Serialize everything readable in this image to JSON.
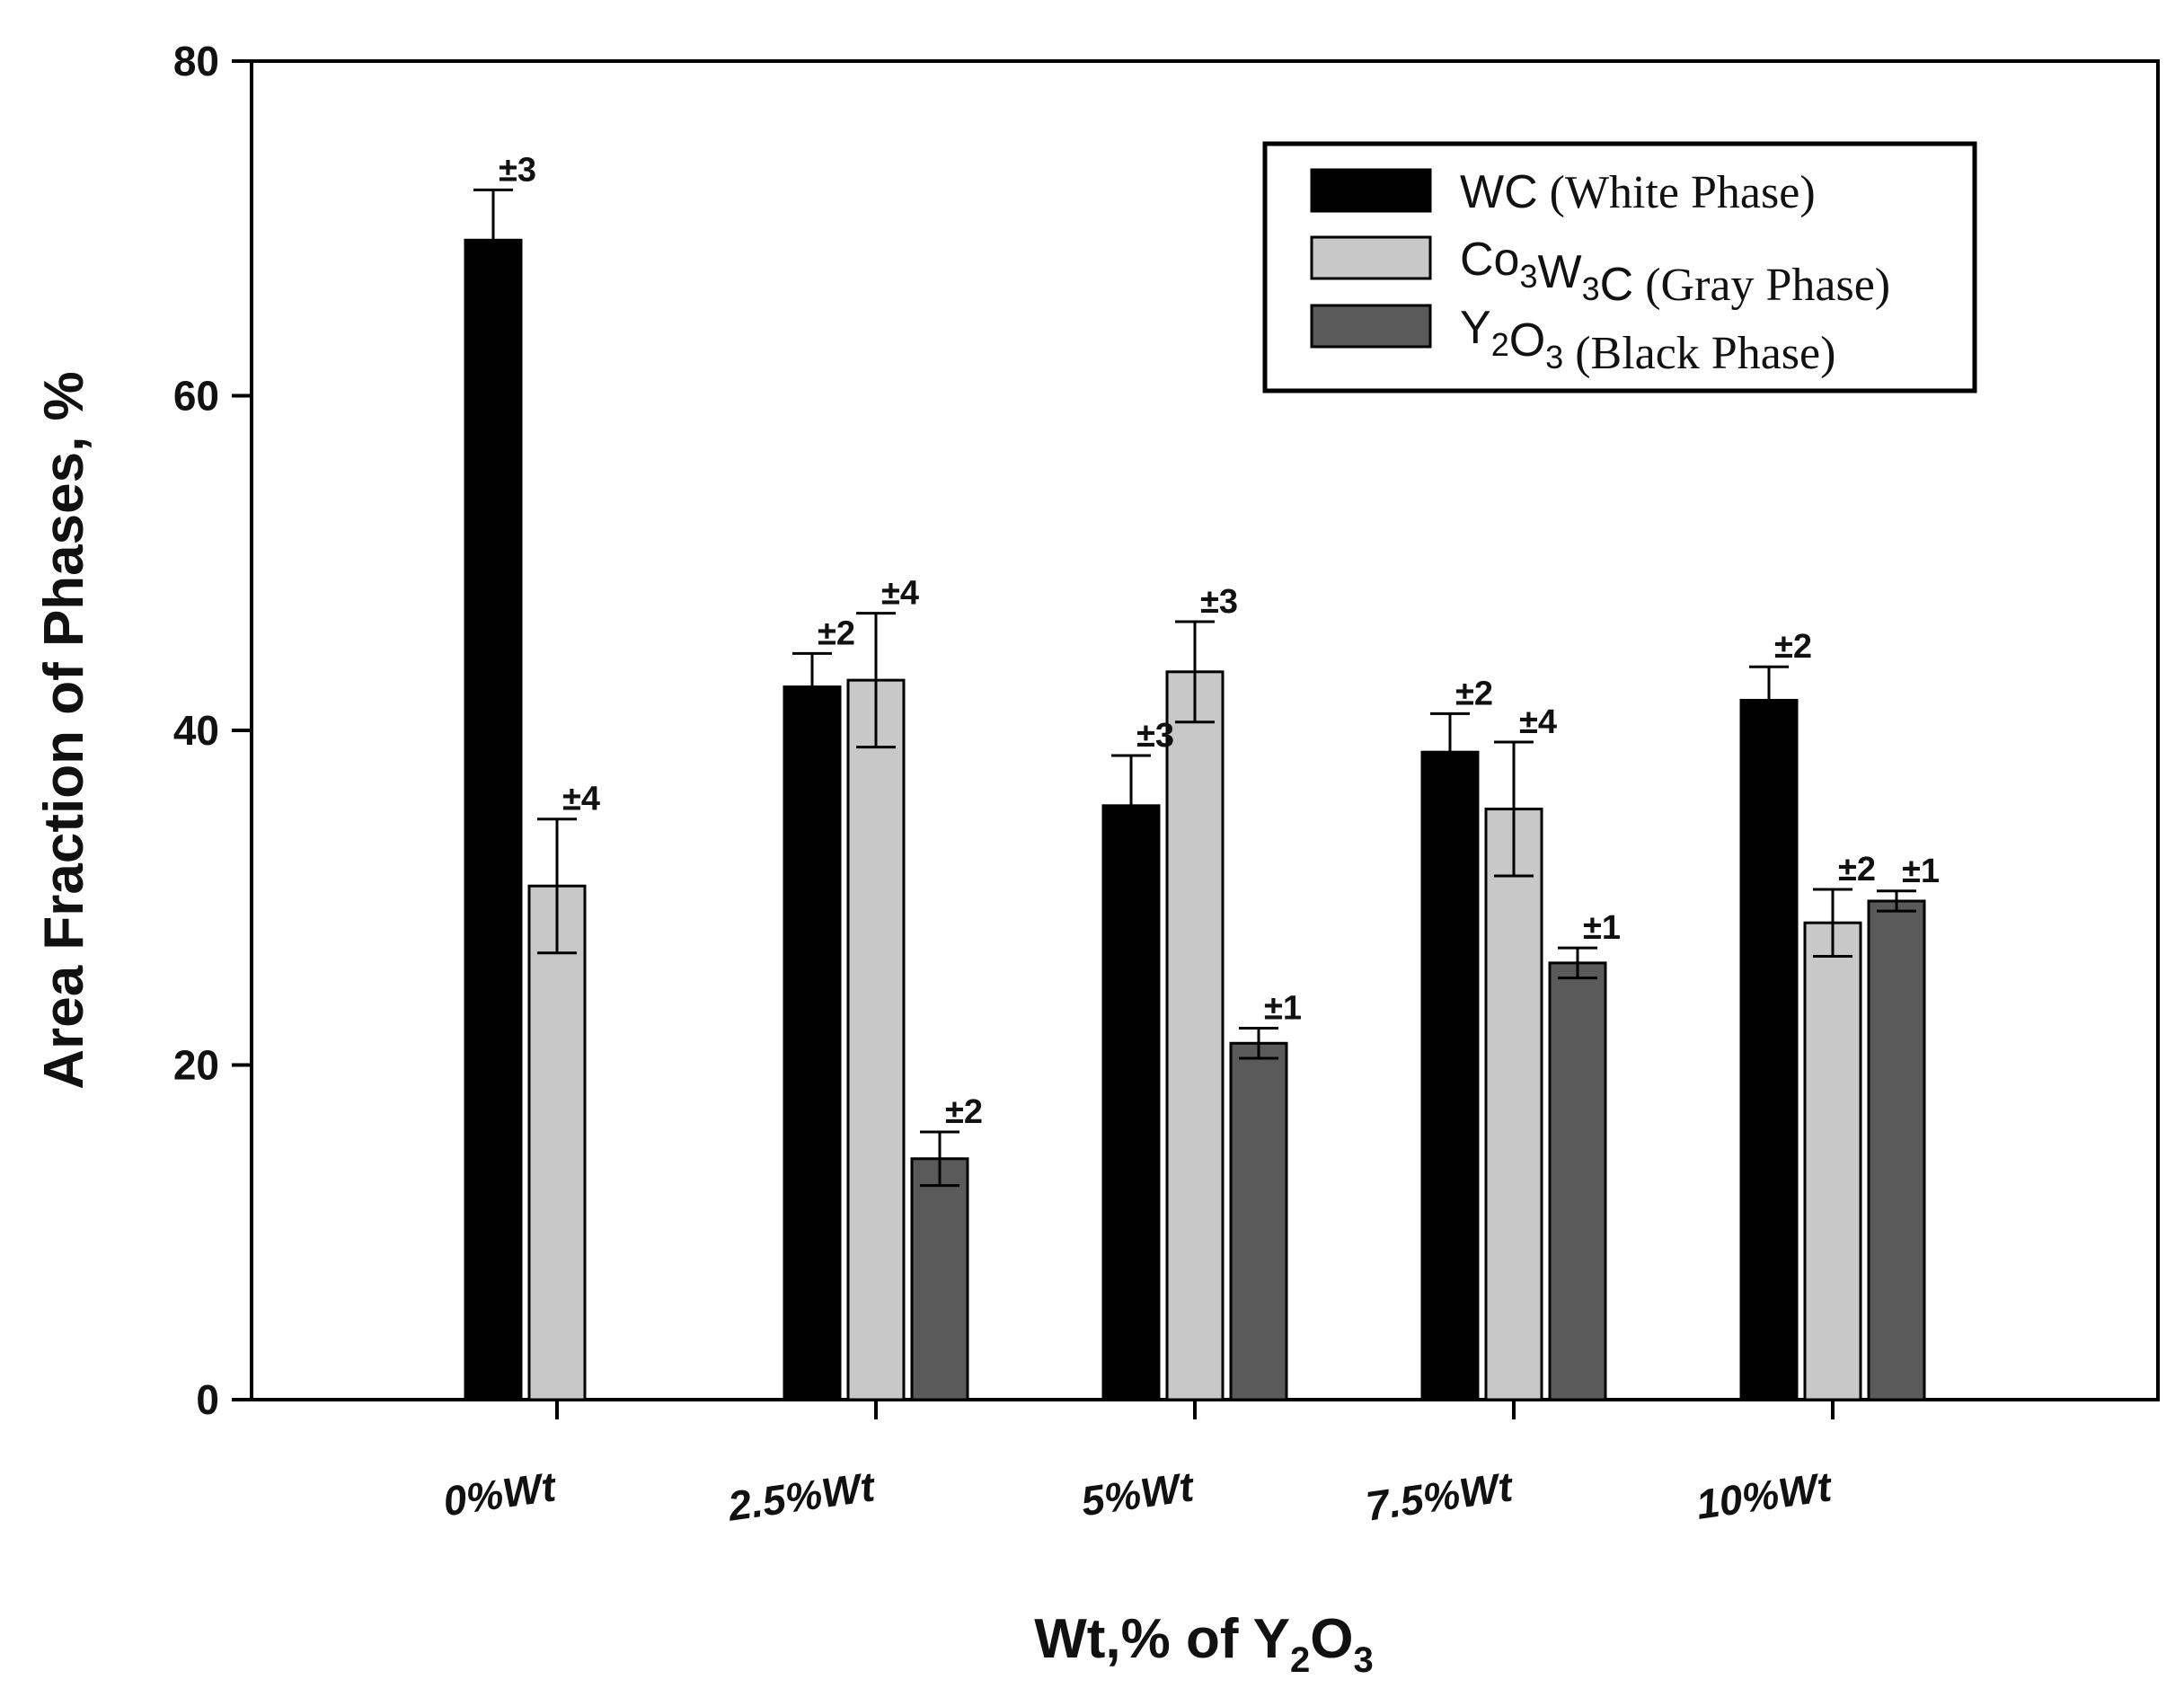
{
  "chart_data": {
    "type": "bar",
    "title": "",
    "xlabel": "Wt,% of Y₂O₃",
    "xlabel_parts": {
      "main": "Wt,% of Y",
      "sub1": "2",
      "mid": "O",
      "sub2": "3"
    },
    "ylabel": "Area Fraction of Phases, %",
    "ylim": [
      0,
      80
    ],
    "yticks": [
      0,
      20,
      40,
      60,
      80
    ],
    "categories": [
      "0%Wt",
      "2.5%Wt",
      "5%Wt",
      "7.5%Wt",
      "10%Wt"
    ],
    "series": [
      {
        "name": "WC (White Phase)",
        "legend_parts": [
          {
            "t": "WC",
            "s": "sans"
          },
          {
            "t": " (White Phase)",
            "s": "serif"
          }
        ],
        "color": "#000000",
        "values": [
          69.3,
          42.6,
          35.5,
          38.7,
          41.8
        ],
        "errors": [
          3,
          2,
          3,
          2,
          2
        ],
        "error_bar": [
          3.0,
          2.0,
          3.0,
          2.3,
          2.0
        ],
        "error_labels": [
          "±3",
          "±2",
          "±3",
          "±2",
          "±2"
        ]
      },
      {
        "name": "Co3W3C (Gray Phase)",
        "legend_parts": [
          {
            "t": "Co",
            "s": "sans"
          },
          {
            "t": "3",
            "s": "sub"
          },
          {
            "t": "W",
            "s": "sans"
          },
          {
            "t": "3",
            "s": "sub"
          },
          {
            "t": "C",
            "s": "sans"
          },
          {
            "t": " (Gray Phase)",
            "s": "serif"
          }
        ],
        "color": "#c8c8c8",
        "values": [
          30.7,
          43.0,
          43.5,
          35.3,
          28.5
        ],
        "errors": [
          4,
          4,
          3,
          4,
          2
        ],
        "error_bar": [
          4.0,
          4.0,
          3.0,
          4.0,
          2.0
        ],
        "error_labels": [
          "±4",
          "±4",
          "±3",
          "±4",
          "±2"
        ]
      },
      {
        "name": "Y2O3 (Black Phase)",
        "legend_parts": [
          {
            "t": "Y",
            "s": "sans"
          },
          {
            "t": "2",
            "s": "sub"
          },
          {
            "t": "O",
            "s": "sans"
          },
          {
            "t": "3",
            "s": "sub"
          },
          {
            "t": " (Black Phase)",
            "s": "serif"
          }
        ],
        "color": "#5a5a5a",
        "values": [
          null,
          14.4,
          21.3,
          26.1,
          29.8
        ],
        "errors": [
          null,
          2,
          1,
          1,
          1
        ],
        "error_bar": [
          null,
          1.6,
          0.9,
          0.9,
          0.6
        ],
        "error_labels": [
          "",
          "±2",
          "±1",
          "±1",
          "±1"
        ]
      }
    ],
    "legend_position": "top-right"
  }
}
